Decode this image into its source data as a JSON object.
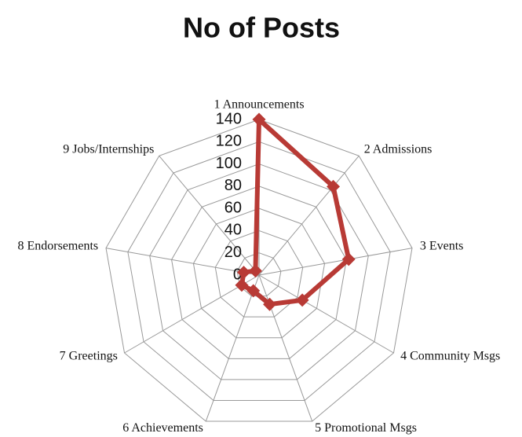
{
  "chart_data": {
    "type": "radar",
    "title": "No of Posts",
    "categories": [
      "1 Announcements",
      "2 Admissions",
      "3 Events",
      "4 Community Msgs",
      "5 Promotional Msgs",
      "6 Achievements",
      "7 Greetings",
      "8 Endorsements",
      "9 Jobs/Internships"
    ],
    "values": [
      140,
      104,
      82,
      45,
      28,
      15,
      18,
      14,
      5
    ],
    "color": "#b83a35",
    "ylim": [
      0,
      140
    ],
    "yticks": [
      0,
      20,
      40,
      60,
      80,
      100,
      120,
      140
    ],
    "grid": true
  }
}
